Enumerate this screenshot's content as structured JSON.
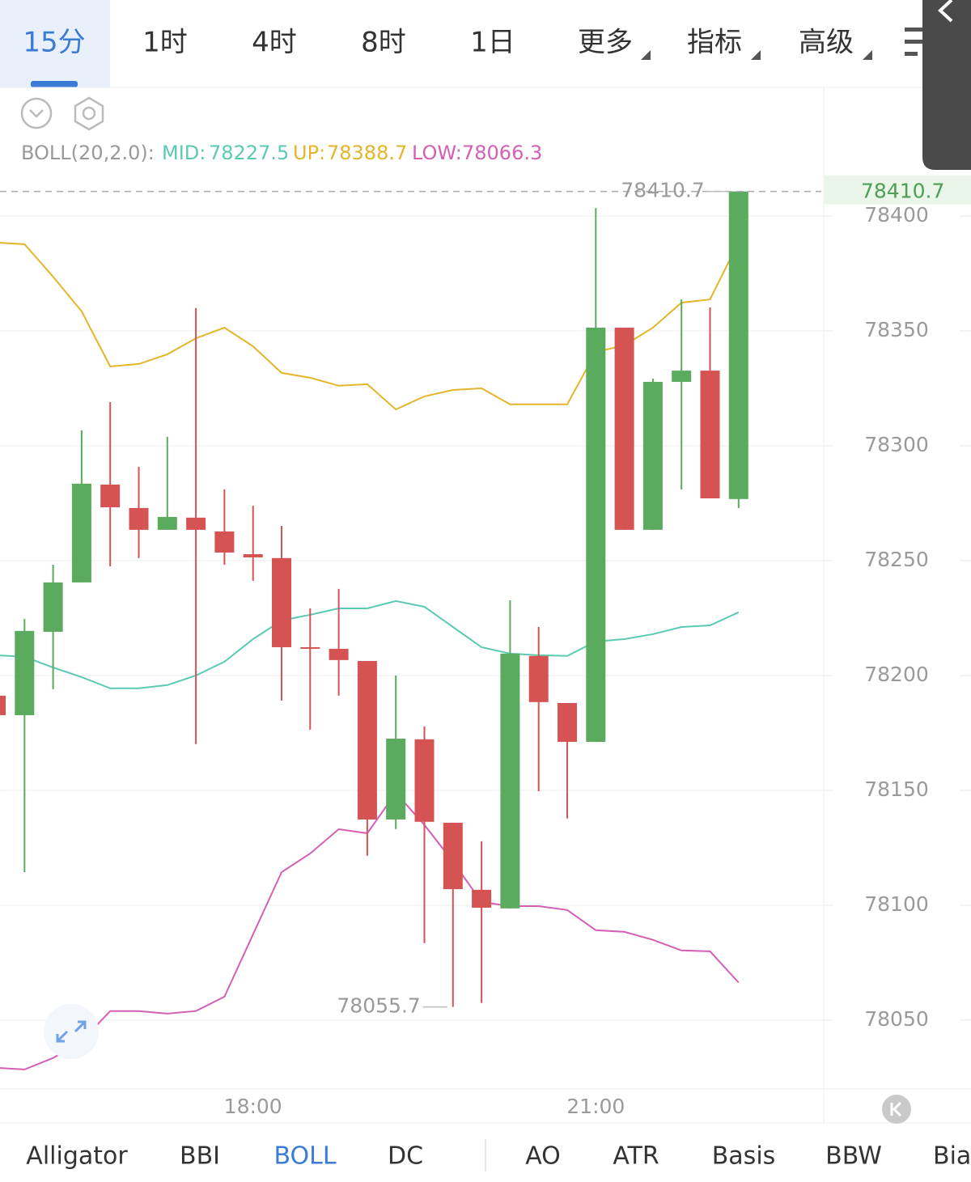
{
  "tabs": [
    "15分",
    "1时",
    "4时",
    "8时",
    "1日",
    "更多",
    "指标",
    "高级"
  ],
  "indicator_tabs": [
    "Alligator",
    "BBI",
    "BOLL",
    "DC",
    "AO",
    "ATR",
    "Basis",
    "BBW",
    "Bias"
  ],
  "chart_data": {
    "type": "candlestick",
    "indicator_label": "BOLL(20,2.0):",
    "categories": [
      null,
      null,
      null,
      null,
      null,
      null,
      null,
      null,
      null,
      "18:00",
      null,
      null,
      null,
      null,
      null,
      null,
      null,
      null,
      null,
      null,
      null,
      "21:00",
      null,
      null,
      null,
      null,
      null
    ],
    "open": [
      78191.2,
      78182.7,
      78219.0,
      78240.5,
      78283.1,
      78272.9,
      78263.4,
      78268.7,
      78262.7,
      78252.8,
      78251.1,
      78212.3,
      78211.6,
      78206.3,
      78137.3,
      78172.2,
      78135.9,
      78106.7,
      78098.6,
      78208.5,
      78188.0,
      78171.1,
      78351.4,
      78263.4,
      78327.8,
      78332.7,
      78276.8
    ],
    "high": [
      78191.2,
      78224.6,
      78248.2,
      78306.7,
      78319.0,
      78290.8,
      78303.9,
      78359.9,
      78281.0,
      78273.9,
      78265.1,
      78229.2,
      78237.7,
      78206.3,
      78200.0,
      78177.8,
      78135.9,
      78127.8,
      78232.7,
      78221.1,
      78188.0,
      78403.5,
      78351.4,
      78329.2,
      78363.7,
      78360.2,
      78410.7
    ],
    "low": [
      78182.7,
      78114.4,
      78194.0,
      78240.5,
      78247.5,
      78251.1,
      78263.4,
      78170.1,
      78248.2,
      78241.2,
      78189.1,
      78176.4,
      78191.2,
      78121.5,
      78133.1,
      78083.5,
      78055.7,
      78057.4,
      78098.6,
      78149.6,
      78137.7,
      78171.1,
      78263.4,
      78263.4,
      78281.0,
      78277.1,
      78272.9
    ],
    "close": [
      78182.7,
      78219.4,
      78240.5,
      78283.5,
      78273.2,
      78263.4,
      78269.0,
      78263.4,
      78253.5,
      78251.4,
      78212.3,
      78211.6,
      78206.7,
      78137.3,
      78172.5,
      78136.3,
      78107.0,
      78098.9,
      78209.5,
      78188.4,
      78171.1,
      78351.4,
      78263.4,
      78327.8,
      78332.7,
      78277.1,
      78410.7
    ],
    "up_color": "#5aab5e",
    "down_color": "#d65353",
    "series": [
      {
        "name": "MID:",
        "color": "#5ccab3",
        "values": [
          78208.8,
          78208.1,
          78203.5,
          78199.3,
          78194.4,
          78194.4,
          78195.8,
          78200.0,
          78206.0,
          78215.8,
          78223.9,
          78226.4,
          78229.2,
          78229.2,
          78232.4,
          78229.9,
          78221.1,
          78212.3,
          78209.5,
          78208.8,
          78208.5,
          78214.8,
          78215.8,
          78218.0,
          78221.1,
          78221.8,
          78227.5
        ]
      },
      {
        "name": "UP:",
        "color": "#e3b52a",
        "values": [
          78388.4,
          78387.7,
          78373.6,
          78358.5,
          78334.5,
          78335.6,
          78339.8,
          78346.8,
          78351.4,
          78343.3,
          78331.7,
          78329.6,
          78326.1,
          78326.8,
          78315.8,
          78321.5,
          78324.3,
          78325.0,
          78318.0,
          78318.0,
          78318.0,
          78340.8,
          78343.7,
          78351.4,
          78362.3,
          78363.7,
          78388.7
        ]
      },
      {
        "name": "LOW:",
        "color": "#d45fb5",
        "values": [
          78029.2,
          78028.5,
          78033.5,
          78040.8,
          78053.9,
          78053.9,
          78052.8,
          78053.9,
          78060.2,
          78087.3,
          78114.4,
          78122.5,
          78133.1,
          78131.3,
          78148.9,
          78134.9,
          78119.0,
          78101.4,
          78099.6,
          78099.6,
          78097.9,
          78089.1,
          78088.4,
          78084.9,
          78080.3,
          78079.9,
          78066.3
        ]
      }
    ],
    "ylim": [
      78020,
      78456
    ],
    "yticks": [
      78050,
      78100,
      78150,
      78200,
      78250,
      78300,
      78350,
      78400
    ],
    "grid": true
  }
}
